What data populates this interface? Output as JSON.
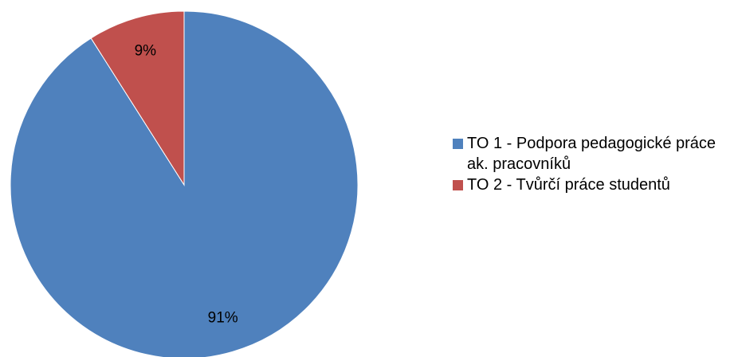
{
  "chart_data": {
    "type": "pie",
    "slices": [
      {
        "label": "TO 1 - Podpora pedagogické práce ak. pracovníků",
        "value": 91,
        "data_label": "91%",
        "color": "#4F81BD"
      },
      {
        "label": "TO 2 - Tvůrčí práce studentů",
        "value": 9,
        "data_label": "9%",
        "color": "#C0504D"
      }
    ],
    "legend_position": "right",
    "start_angle": "top (12 o'clock), clockwise"
  },
  "legend": {
    "items": [
      {
        "label": "TO 1 - Podpora pedagogické práce ak. pracovníků",
        "color": "#4F81BD"
      },
      {
        "label": "TO 2 - Tvůrčí práce studentů",
        "color": "#C0504D"
      }
    ]
  }
}
